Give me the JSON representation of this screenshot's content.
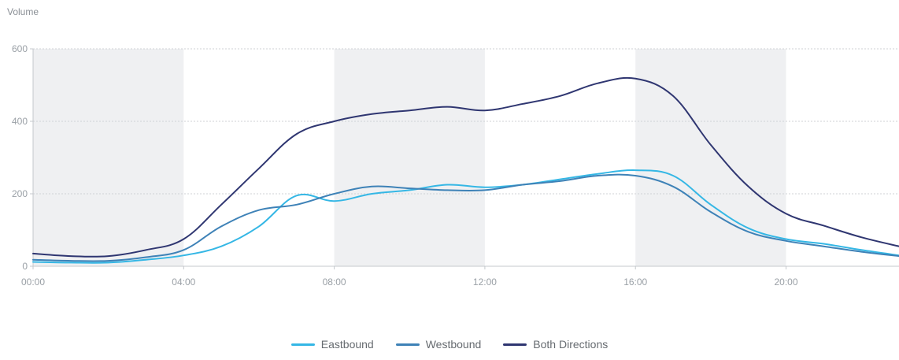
{
  "chart_data": {
    "type": "line",
    "ylabel": "Volume",
    "x": [
      0,
      1,
      2,
      3,
      4,
      5,
      6,
      7,
      8,
      9,
      10,
      11,
      12,
      13,
      14,
      15,
      16,
      17,
      18,
      19,
      20,
      21,
      22,
      23
    ],
    "xticks": [
      0,
      4,
      8,
      12,
      16,
      20
    ],
    "xtick_labels": [
      "00:00",
      "04:00",
      "08:00",
      "12:00",
      "16:00",
      "20:00"
    ],
    "xlim": [
      0,
      23
    ],
    "ylim": [
      0,
      600
    ],
    "yticks": [
      0,
      200,
      400,
      600
    ],
    "shaded_bands": [
      [
        0,
        4
      ],
      [
        8,
        12
      ],
      [
        16,
        20
      ]
    ],
    "grid": true,
    "legend": "bottom-center",
    "series": [
      {
        "name": "Eastbound",
        "color": "#35b7e5",
        "values": [
          12,
          10,
          10,
          18,
          30,
          55,
          110,
          195,
          180,
          200,
          210,
          225,
          218,
          225,
          240,
          255,
          265,
          250,
          170,
          105,
          75,
          62,
          45,
          30
        ]
      },
      {
        "name": "Westbound",
        "color": "#3e82b7",
        "values": [
          18,
          15,
          15,
          25,
          45,
          110,
          155,
          170,
          200,
          220,
          215,
          210,
          210,
          225,
          235,
          250,
          250,
          220,
          150,
          95,
          70,
          55,
          40,
          28
        ]
      },
      {
        "name": "Both Directions",
        "color": "#2f3671",
        "values": [
          35,
          28,
          28,
          45,
          75,
          170,
          270,
          365,
          400,
          420,
          430,
          440,
          430,
          448,
          470,
          505,
          518,
          470,
          335,
          220,
          145,
          112,
          80,
          55
        ]
      }
    ]
  }
}
